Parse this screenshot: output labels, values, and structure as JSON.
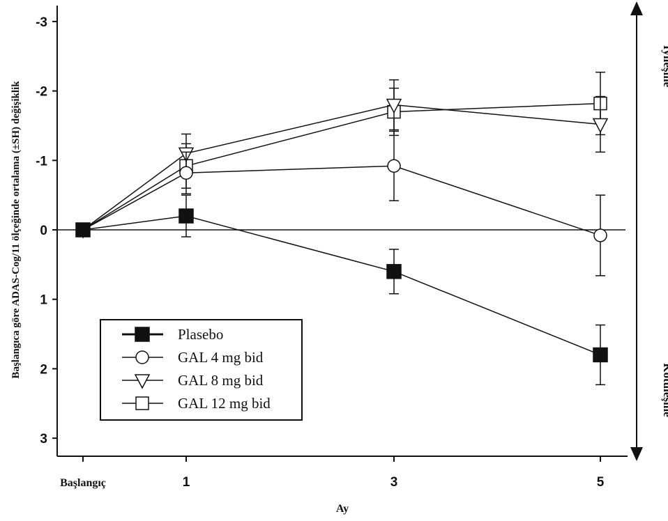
{
  "chart_data": {
    "type": "line",
    "title": "",
    "xlabel": "Ay",
    "ylabel": "Başlangıca göre ADAS-Cog/11 ölçeğinde ortalama (±SH) değişiklik",
    "x_categories": [
      "Başlangıç",
      "1",
      "3",
      "5"
    ],
    "x": [
      0,
      1,
      3,
      5
    ],
    "xlim": [
      -0.2,
      5.2
    ],
    "ylim": [
      3.3,
      -3.3
    ],
    "y_inverted": true,
    "yticks": [
      -3,
      -2,
      -1,
      0,
      1,
      2,
      3
    ],
    "ytick_labels": [
      "-3",
      "-2",
      "-1",
      "0",
      "1",
      "2",
      "3"
    ],
    "reference_line": 0,
    "legend_position": "lower-left",
    "series": [
      {
        "name": "Plasebo",
        "marker": "filled-square",
        "values": [
          0,
          -0.2,
          0.6,
          1.8
        ],
        "errors": [
          0,
          0.3,
          0.32,
          0.43
        ]
      },
      {
        "name": "GAL 4 mg bid",
        "marker": "open-circle",
        "values": [
          0,
          -0.82,
          -0.92,
          0.08
        ],
        "errors": [
          0,
          0.3,
          0.5,
          0.58
        ]
      },
      {
        "name": "GAL 8 mg bid",
        "marker": "open-triangle-down",
        "values": [
          0,
          -1.1,
          -1.8,
          -1.52
        ],
        "errors": [
          0,
          0.28,
          0.36,
          0.4
        ]
      },
      {
        "name": "GAL 12 mg bid",
        "marker": "open-square",
        "values": [
          0,
          -0.92,
          -1.7,
          -1.82
        ],
        "errors": [
          0,
          0.32,
          0.34,
          0.45
        ]
      }
    ],
    "annotations": {
      "improvement": "İyileşme",
      "worsening": "Kötüleşme"
    }
  }
}
